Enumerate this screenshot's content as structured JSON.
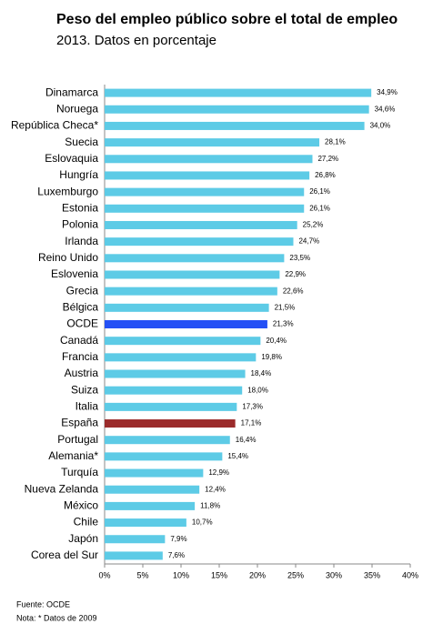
{
  "chart_data": {
    "type": "hbar",
    "title": "Peso del empleo público sobre el total de empleo",
    "subtitle": "2013. Datos en porcentaje",
    "categories": [
      "Dinamarca",
      "Noruega",
      "República Checa*",
      "Suecia",
      "Eslovaquia",
      "Hungría",
      "Luxemburgo",
      "Estonia",
      "Polonia",
      "Irlanda",
      "Reino Unido",
      "Eslovenia",
      "Grecia",
      "Bélgica",
      "OCDE",
      "Canadá",
      "Francia",
      "Austria",
      "Suiza",
      "Italia",
      "España",
      "Portugal",
      "Alemania*",
      "Turquía",
      "Nueva Zelanda",
      "México",
      "Chile",
      "Japón",
      "Corea del Sur"
    ],
    "values": [
      34.9,
      34.6,
      34.0,
      28.1,
      27.2,
      26.8,
      26.1,
      26.1,
      25.2,
      24.7,
      23.5,
      22.9,
      22.6,
      21.5,
      21.3,
      20.4,
      19.8,
      18.4,
      18.0,
      17.3,
      17.1,
      16.4,
      15.4,
      12.9,
      12.4,
      11.8,
      10.7,
      7.9,
      7.6
    ],
    "value_labels": [
      "34,9%",
      "34,6%",
      "34,0%",
      "28,1%",
      "27,2%",
      "26,8%",
      "26,1%",
      "26,1%",
      "25,2%",
      "24,7%",
      "23,5%",
      "22,9%",
      "22,6%",
      "21,5%",
      "21,3%",
      "20,4%",
      "19,8%",
      "18,4%",
      "18,0%",
      "17,3%",
      "17,1%",
      "16,4%",
      "15,4%",
      "12,9%",
      "12,4%",
      "11,8%",
      "10,7%",
      "7,9%",
      "7,6%"
    ],
    "colors": [
      "#5dcbe6",
      "#5dcbe6",
      "#5dcbe6",
      "#5dcbe6",
      "#5dcbe6",
      "#5dcbe6",
      "#5dcbe6",
      "#5dcbe6",
      "#5dcbe6",
      "#5dcbe6",
      "#5dcbe6",
      "#5dcbe6",
      "#5dcbe6",
      "#5dcbe6",
      "#2450f5",
      "#5dcbe6",
      "#5dcbe6",
      "#5dcbe6",
      "#5dcbe6",
      "#5dcbe6",
      "#9b2b2b",
      "#5dcbe6",
      "#5dcbe6",
      "#5dcbe6",
      "#5dcbe6",
      "#5dcbe6",
      "#5dcbe6",
      "#5dcbe6",
      "#5dcbe6"
    ],
    "xlim": [
      0,
      40
    ],
    "xticks": [
      {
        "value": 0,
        "label": "0%"
      },
      {
        "value": 5,
        "label": "5%"
      },
      {
        "value": 10,
        "label": "10%"
      },
      {
        "value": 15,
        "label": "15%"
      },
      {
        "value": 20,
        "label": "20%"
      },
      {
        "value": 25,
        "label": "25%"
      },
      {
        "value": 30,
        "label": "30%"
      },
      {
        "value": 35,
        "label": "35%"
      },
      {
        "value": 40,
        "label": "40%"
      }
    ],
    "notes": [
      "Fuente: OCDE",
      "Nota: * Datos de 2009"
    ]
  }
}
